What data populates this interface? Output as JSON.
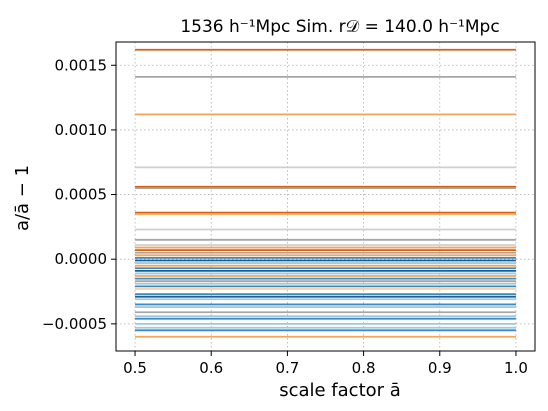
{
  "chart_data": {
    "type": "line",
    "title": "1536 h⁻¹Mpc Sim. r𝒟 = 140.0 h⁻¹Mpc",
    "xlabel": "scale factor ā",
    "ylabel": "a/ā − 1",
    "xlim": [
      0.475,
      1.025
    ],
    "ylim": [
      -0.00071,
      0.00168
    ],
    "grid": true,
    "x_ticks": [
      0.5,
      0.6,
      0.7,
      0.8,
      0.9,
      1.0
    ],
    "x_tick_labels": [
      "0.5",
      "0.6",
      "0.7",
      "0.8",
      "0.9",
      "1.0"
    ],
    "y_ticks": [
      -0.0005,
      0.0,
      0.0005,
      0.001,
      0.0015
    ],
    "y_tick_labels": [
      "−0.0005",
      "0.0000",
      "0.0005",
      "0.0010",
      "0.0015"
    ],
    "x_range": [
      0.5,
      1.0
    ],
    "colors": {
      "dark_orange": "#d95f0e",
      "orange": "#f5a45a",
      "light_orange": "#fdd0a2",
      "dark_blue": "#1f5f8b",
      "blue": "#3b8bc2",
      "light_blue": "#9ecae1",
      "gray": "#a6a6a6",
      "light_gray": "#cfcfcf"
    },
    "series": [
      {
        "y": 0.00162,
        "color": "dark_orange"
      },
      {
        "y": 0.00141,
        "color": "gray"
      },
      {
        "y": 0.00112,
        "color": "orange"
      },
      {
        "y": 0.00071,
        "color": "light_gray"
      },
      {
        "y": 0.00056,
        "color": "dark_orange"
      },
      {
        "y": 0.00055,
        "color": "gray"
      },
      {
        "y": 0.00036,
        "color": "dark_orange"
      },
      {
        "y": 0.00035,
        "color": "orange"
      },
      {
        "y": 0.00023,
        "color": "light_gray"
      },
      {
        "y": 0.00015,
        "color": "gray"
      },
      {
        "y": 0.00011,
        "color": "light_gray"
      },
      {
        "y": 9e-05,
        "color": "orange"
      },
      {
        "y": 7e-05,
        "color": "dark_orange"
      },
      {
        "y": 5e-05,
        "color": "gray"
      },
      {
        "y": 3e-05,
        "color": "orange"
      },
      {
        "y": 1e-05,
        "color": "blue"
      },
      {
        "y": -1e-05,
        "color": "dark_blue"
      },
      {
        "y": -3e-05,
        "color": "light_blue"
      },
      {
        "y": -5e-05,
        "color": "orange"
      },
      {
        "y": -7e-05,
        "color": "blue"
      },
      {
        "y": -9e-05,
        "color": "dark_blue"
      },
      {
        "y": -0.00011,
        "color": "light_blue"
      },
      {
        "y": -0.00013,
        "color": "orange"
      },
      {
        "y": -0.00015,
        "color": "blue"
      },
      {
        "y": -0.00017,
        "color": "gray"
      },
      {
        "y": -0.00019,
        "color": "light_blue"
      },
      {
        "y": -0.00021,
        "color": "blue"
      },
      {
        "y": -0.00023,
        "color": "light_orange"
      },
      {
        "y": -0.00027,
        "color": "blue"
      },
      {
        "y": -0.00029,
        "color": "dark_blue"
      },
      {
        "y": -0.00031,
        "color": "light_blue"
      },
      {
        "y": -0.00035,
        "color": "blue"
      },
      {
        "y": -0.00037,
        "color": "light_blue"
      },
      {
        "y": -0.00041,
        "color": "gray"
      },
      {
        "y": -0.00044,
        "color": "light_blue"
      },
      {
        "y": -0.00046,
        "color": "blue"
      },
      {
        "y": -0.0005,
        "color": "light_blue"
      },
      {
        "y": -0.00053,
        "color": "light_blue"
      },
      {
        "y": -0.00055,
        "color": "blue"
      },
      {
        "y": -0.0006,
        "color": "orange"
      }
    ]
  }
}
